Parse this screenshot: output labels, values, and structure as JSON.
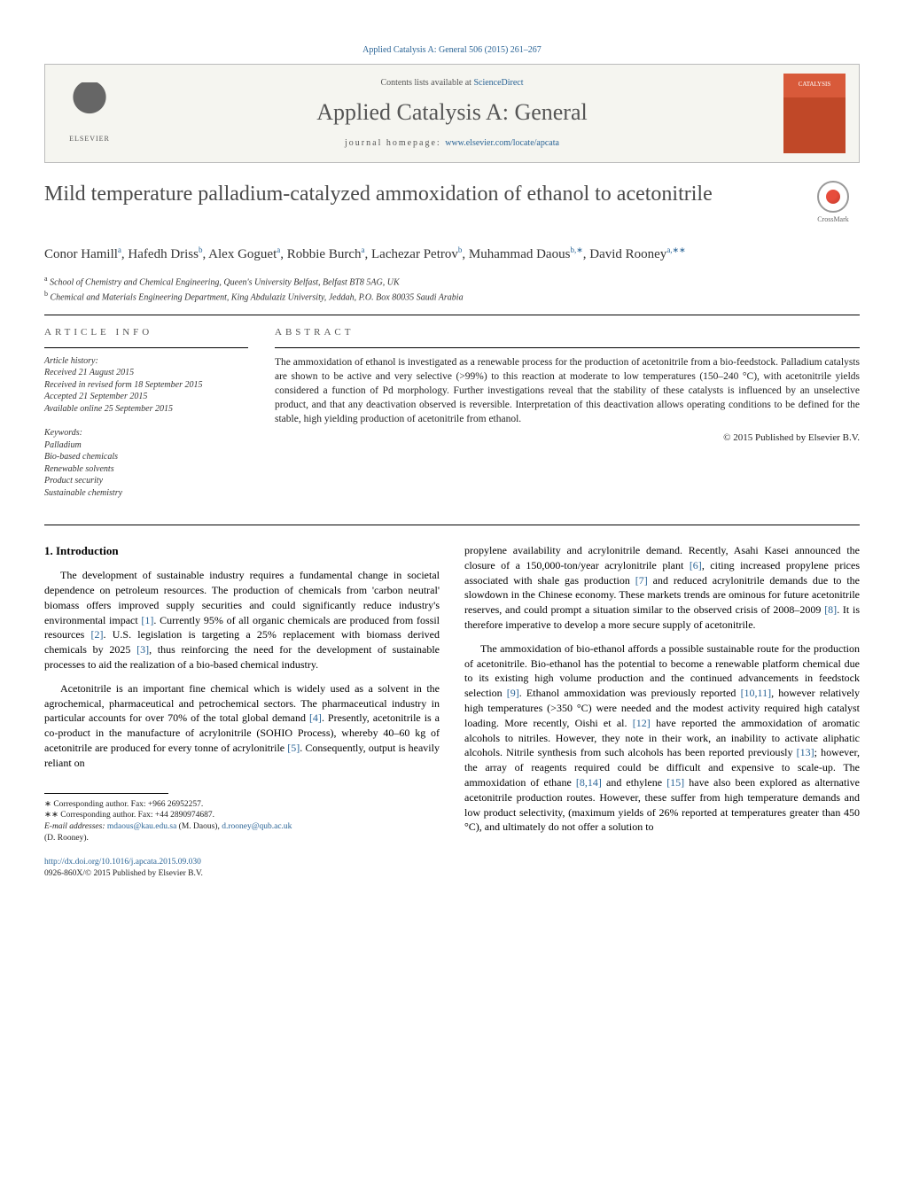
{
  "header": {
    "top_link": "Applied Catalysis A: General 506 (2015) 261–267",
    "contents_line_prefix": "Contents lists available at ",
    "contents_link": "ScienceDirect",
    "journal_name": "Applied Catalysis A: General",
    "homepage_prefix": "journal homepage: ",
    "homepage_url": "www.elsevier.com/locate/apcata",
    "elsevier_label": "ELSEVIER",
    "cover_text": "CATALYSIS",
    "crossmark": "CrossMark"
  },
  "title": "Mild temperature palladium-catalyzed ammoxidation of ethanol to acetonitrile",
  "authors_html": "Conor Hamill<sup>a</sup>, Hafedh Driss<sup>b</sup>, Alex Goguet<sup>a</sup>, Robbie Burch<sup>a</sup>, Lachezar Petrov<sup>b</sup>, Muhammad Daous<sup>b,∗</sup>, David Rooney<sup>a,∗∗</sup>",
  "affiliations": {
    "a": "School of Chemistry and Chemical Engineering, Queen's University Belfast, Belfast BT8 5AG, UK",
    "b": "Chemical and Materials Engineering Department, King Abdulaziz University, Jeddah, P.O. Box 80035 Saudi Arabia"
  },
  "article_info": {
    "label": "article info",
    "history_label": "Article history:",
    "received": "Received 21 August 2015",
    "revised": "Received in revised form 18 September 2015",
    "accepted": "Accepted 21 September 2015",
    "online": "Available online 25 September 2015",
    "keywords_label": "Keywords:",
    "keywords": [
      "Palladium",
      "Bio-based chemicals",
      "Renewable solvents",
      "Product security",
      "Sustainable chemistry"
    ]
  },
  "abstract": {
    "label": "abstract",
    "text": "The ammoxidation of ethanol is investigated as a renewable process for the production of acetonitrile from a bio-feedstock. Palladium catalysts are shown to be active and very selective (>99%) to this reaction at moderate to low temperatures (150–240 °C), with acetonitrile yields considered a function of Pd morphology. Further investigations reveal that the stability of these catalysts is influenced by an unselective product, and that any deactivation observed is reversible. Interpretation of this deactivation allows operating conditions to be defined for the stable, high yielding production of acetonitrile from ethanol.",
    "copyright": "© 2015 Published by Elsevier B.V."
  },
  "body": {
    "intro_heading": "1. Introduction",
    "p1": "The development of sustainable industry requires a fundamental change in societal dependence on petroleum resources. The production of chemicals from 'carbon neutral' biomass offers improved supply securities and could significantly reduce industry's environmental impact [1]. Currently 95% of all organic chemicals are produced from fossil resources [2]. U.S. legislation is targeting a 25% replacement with biomass derived chemicals by 2025 [3], thus reinforcing the need for the development of sustainable processes to aid the realization of a bio-based chemical industry.",
    "p2": "Acetonitrile is an important fine chemical which is widely used as a solvent in the agrochemical, pharmaceutical and petrochemical sectors. The pharmaceutical industry in particular accounts for over 70% of the total global demand [4]. Presently, acetonitrile is a co-product in the manufacture of acrylonitrile (SOHIO Process), whereby 40–60 kg of acetonitrile are produced for every tonne of acrylonitrile [5]. Consequently, output is heavily reliant on",
    "p3": "propylene availability and acrylonitrile demand. Recently, Asahi Kasei announced the closure of a 150,000-ton/year acrylonitrile plant [6], citing increased propylene prices associated with shale gas production [7] and reduced acrylonitrile demands due to the slowdown in the Chinese economy. These markets trends are ominous for future acetonitrile reserves, and could prompt a situation similar to the observed crisis of 2008–2009 [8]. It is therefore imperative to develop a more secure supply of acetonitrile.",
    "p4": "The ammoxidation of bio-ethanol affords a possible sustainable route for the production of acetonitrile. Bio-ethanol has the potential to become a renewable platform chemical due to its existing high volume production and the continued advancements in feedstock selection [9]. Ethanol ammoxidation was previously reported [10,11], however relatively high temperatures (>350 °C) were needed and the modest activity required high catalyst loading. More recently, Oishi et al. [12] have reported the ammoxidation of aromatic alcohols to nitriles. However, they note in their work, an inability to activate aliphatic alcohols. Nitrile synthesis from such alcohols has been reported previously [13]; however, the array of reagents required could be difficult and expensive to scale-up. The ammoxidation of ethane [8,14] and ethylene [15] have also been explored as alternative acetonitrile production routes. However, these suffer from high temperature demands and low product selectivity, (maximum yields of 26% reported at temperatures greater than 450 °C), and ultimately do not offer a solution to"
  },
  "footnotes": {
    "c1": "∗ Corresponding author. Fax: +966 26952257.",
    "c2": "∗∗ Corresponding author. Fax: +44 2890974687.",
    "email_label": "E-mail addresses: ",
    "email1": "mdaous@kau.edu.sa",
    "email1_name": " (M. Daous), ",
    "email2": "d.rooney@qub.ac.uk",
    "email2_name": "(D. Rooney)."
  },
  "doi": {
    "url": "http://dx.doi.org/10.1016/j.apcata.2015.09.030",
    "issn": "0926-860X/© 2015 Published by Elsevier B.V."
  },
  "colors": {
    "link": "#2a6496",
    "text": "#000000",
    "muted": "#555555",
    "header_bg": "#f5f5f0",
    "cover_top": "#d85a3a",
    "cover_bottom": "#c04828"
  }
}
